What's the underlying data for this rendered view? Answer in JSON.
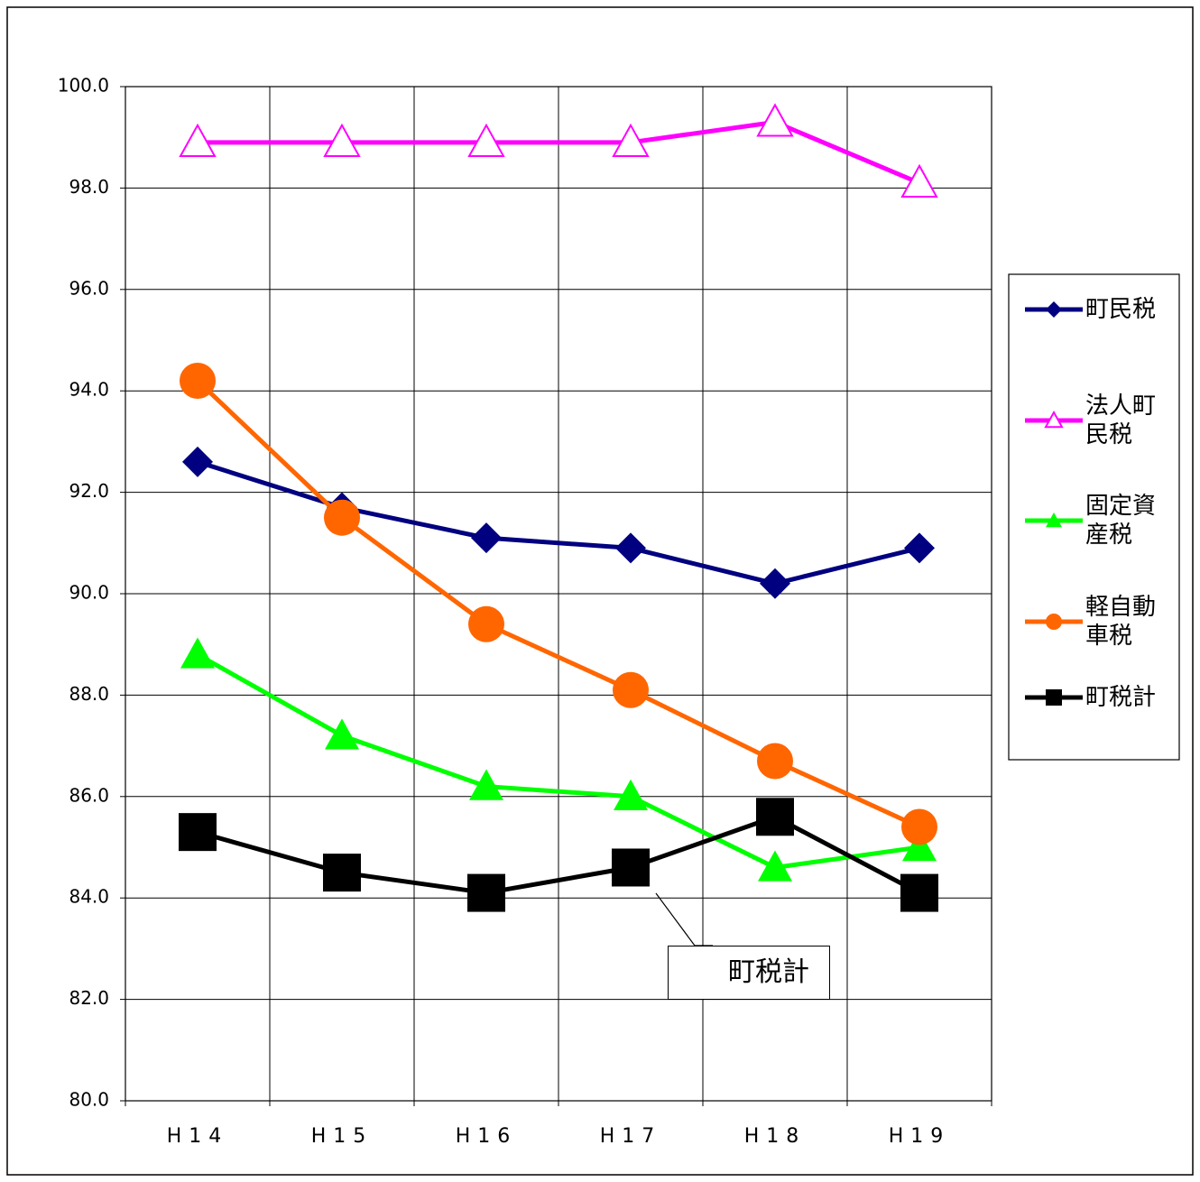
{
  "chart_data": {
    "type": "line",
    "categories": [
      "H14",
      "H15",
      "H16",
      "H17",
      "H18",
      "H19"
    ],
    "ylim": [
      80,
      100
    ],
    "yticks": [
      {
        "value": 80,
        "label": "80.0"
      },
      {
        "value": 82,
        "label": "82.0"
      },
      {
        "value": 84,
        "label": "84.0"
      },
      {
        "value": 86,
        "label": "86.0"
      },
      {
        "value": 88,
        "label": "88.0"
      },
      {
        "value": 90,
        "label": "90.0"
      },
      {
        "value": 92,
        "label": "92.0"
      },
      {
        "value": 94,
        "label": "94.0"
      },
      {
        "value": 96,
        "label": "96.0"
      },
      {
        "value": 98,
        "label": "98.0"
      },
      {
        "value": 100,
        "label": "100.0"
      }
    ],
    "grid": true,
    "legend": "right",
    "series": [
      {
        "name": "町民税",
        "color": "#000080",
        "marker": "diamond",
        "values": [
          92.6,
          91.7,
          91.1,
          90.9,
          90.2,
          90.9
        ]
      },
      {
        "name": "法人町民税",
        "color": "#ff00ff",
        "marker": "open-triangle",
        "values": [
          98.9,
          98.9,
          98.9,
          98.9,
          99.3,
          98.1
        ]
      },
      {
        "name": "固定資産税",
        "color": "#00ff00",
        "marker": "triangle",
        "values": [
          88.8,
          87.2,
          86.2,
          86.0,
          84.6,
          85.0
        ]
      },
      {
        "name": "軽自動車税",
        "color": "#ff6600",
        "marker": "circle",
        "values": [
          94.2,
          91.5,
          89.4,
          88.1,
          86.7,
          85.4
        ]
      },
      {
        "name": "町税計",
        "color": "#000000",
        "marker": "square",
        "values": [
          85.3,
          84.5,
          84.1,
          84.6,
          85.6,
          84.1
        ]
      }
    ],
    "annotation": "町税計"
  }
}
